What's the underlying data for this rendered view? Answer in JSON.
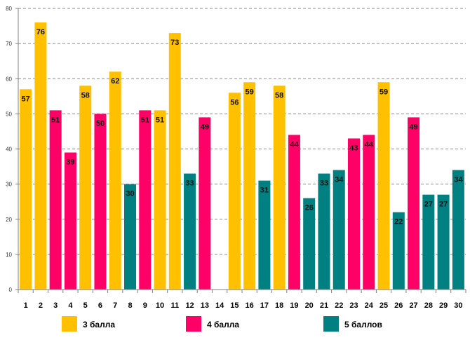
{
  "chart_data": {
    "type": "bar",
    "title": "",
    "xlabel": "",
    "ylabel": "",
    "ylim": [
      0,
      80
    ],
    "yticks": [
      0,
      10,
      20,
      30,
      40,
      50,
      60,
      70,
      80
    ],
    "grid": true,
    "legend_position": "bottom",
    "categories": [
      "1",
      "2",
      "3",
      "4",
      "5",
      "6",
      "7",
      "8",
      "9",
      "10",
      "11",
      "12",
      "13",
      "14",
      "15",
      "16",
      "17",
      "18",
      "19",
      "20",
      "21",
      "22",
      "23",
      "24",
      "25",
      "26",
      "27",
      "28",
      "29",
      "30"
    ],
    "values": [
      57,
      76,
      51,
      39,
      58,
      50,
      62,
      30,
      51,
      51,
      73,
      33,
      49,
      null,
      56,
      59,
      31,
      58,
      44,
      26,
      33,
      34,
      43,
      44,
      59,
      22,
      49,
      27,
      27,
      34
    ],
    "labels": [
      "57",
      "76",
      "51",
      "39",
      "58",
      "50",
      "62",
      "30",
      "51",
      "51",
      "73",
      "33",
      "49",
      "",
      "56",
      "59",
      "31",
      "58",
      "44",
      "26",
      "33",
      "34",
      "43",
      "44",
      "59",
      "22",
      "49",
      "27",
      "27",
      "34"
    ],
    "groups": [
      "3",
      "3",
      "4",
      "4",
      "3",
      "4",
      "3",
      "5",
      "4",
      "3",
      "3",
      "5",
      "4",
      "",
      "3",
      "3",
      "5",
      "3",
      "4",
      "5",
      "5",
      "5",
      "4",
      "4",
      "3",
      "5",
      "4",
      "5",
      "5",
      "5"
    ],
    "series": [
      {
        "key": "3",
        "name": "3 балла",
        "color": "#FFC000"
      },
      {
        "key": "4",
        "name": "4 балла",
        "color": "#FF0066"
      },
      {
        "key": "5",
        "name": "5 баллов",
        "color": "#008080"
      }
    ]
  }
}
